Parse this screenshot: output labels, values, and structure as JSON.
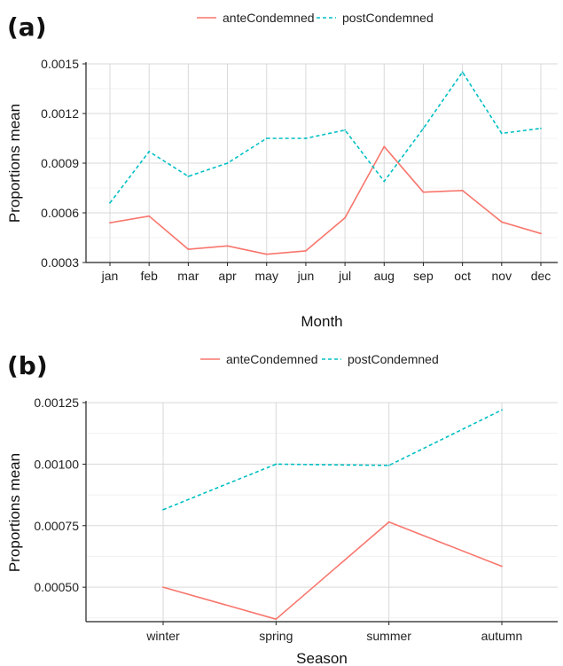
{
  "chart_data": [
    {
      "type": "line",
      "panel_label": "(a)",
      "xlabel": "Month",
      "ylabel": "Proportions mean",
      "categories": [
        "jan",
        "feb",
        "mar",
        "apr",
        "may",
        "jun",
        "jul",
        "aug",
        "sep",
        "oct",
        "nov",
        "dec"
      ],
      "ylim": [
        0.0003,
        0.0015
      ],
      "yticks": [
        "0.0003",
        "0.0006",
        "0.0009",
        "0.0012",
        "0.0015"
      ],
      "grid": true,
      "legend_position": "top",
      "series": [
        {
          "name": "anteCondemned",
          "color": "#f8766d",
          "dash": "solid",
          "values": [
            0.00054,
            0.00058,
            0.00038,
            0.0004,
            0.00035,
            0.00037,
            0.00057,
            0.001,
            0.000725,
            0.000735,
            0.000545,
            0.000475
          ]
        },
        {
          "name": "postCondemned",
          "color": "#00bfc4",
          "dash": "dashed",
          "values": [
            0.00066,
            0.00097,
            0.00082,
            0.0009,
            0.00105,
            0.00105,
            0.0011,
            0.00079,
            0.00111,
            0.00145,
            0.00108,
            0.00111
          ]
        }
      ]
    },
    {
      "type": "line",
      "panel_label": "(b)",
      "xlabel": "Season",
      "ylabel": "Proportions mean",
      "categories": [
        "winter",
        "spring",
        "summer",
        "autumn"
      ],
      "ylim": [
        0.00036,
        0.00125
      ],
      "yticks": [
        "0.00050",
        "0.00075",
        "0.00100",
        "0.00125"
      ],
      "grid": true,
      "legend_position": "top",
      "series": [
        {
          "name": "anteCondemned",
          "color": "#f8766d",
          "dash": "solid",
          "values": [
            0.0005,
            0.00037,
            0.000765,
            0.000585
          ]
        },
        {
          "name": "postCondemned",
          "color": "#00bfc4",
          "dash": "dashed",
          "values": [
            0.000815,
            0.001,
            0.000995,
            0.00122
          ]
        }
      ]
    }
  ]
}
